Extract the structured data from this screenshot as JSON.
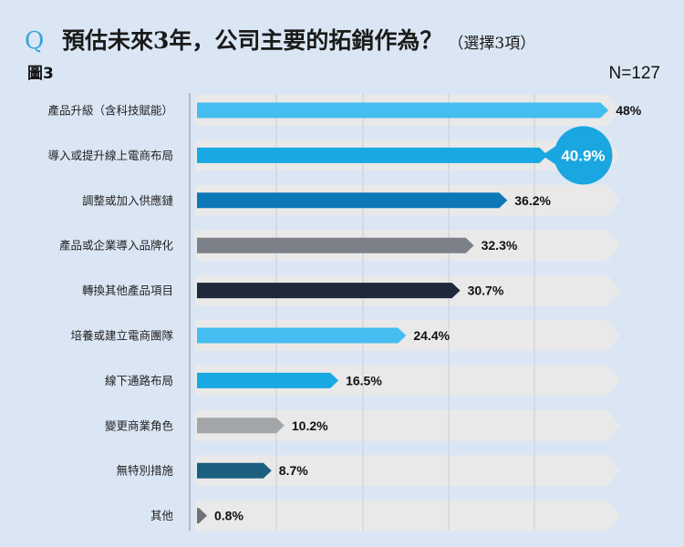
{
  "header": {
    "q_mark": "Q",
    "title": "預估未來3年，公司主要的拓銷作為？",
    "title_note": "（選擇3項）",
    "figure_label": "圖3",
    "sample_size": "N=127"
  },
  "colors": {
    "track": "#e9e9e9",
    "highlight_circle": "#1aa6e0"
  },
  "chart_data": {
    "type": "bar",
    "orientation": "horizontal",
    "title": "預估未來3年，公司主要的拓銷作為？",
    "xlim": [
      0,
      100
    ],
    "grid": true,
    "highlight_index": 1,
    "categories": [
      "產品升級（含科技賦能）",
      "導入或提升線上電商布局",
      "調整或加入供應鏈",
      "產品或企業導入品牌化",
      "轉換其他產品項目",
      "培養或建立電商團隊",
      "線下通路布局",
      "變更商業角色",
      "無特別措施",
      "其他"
    ],
    "values": [
      48,
      40.9,
      36.2,
      32.3,
      30.7,
      24.4,
      16.5,
      10.2,
      8.7,
      0.8
    ],
    "value_labels": [
      "48%",
      "40.9%",
      "36.2%",
      "32.3%",
      "30.7%",
      "24.4%",
      "16.5%",
      "10.2%",
      "8.7%",
      "0.8%"
    ],
    "bar_colors": [
      "#45bdf0",
      "#18a8e2",
      "#0d78b8",
      "#7c8189",
      "#1e2a3b",
      "#45bdf0",
      "#18a8e2",
      "#a3a6a9",
      "#1b5f80",
      "#6f7378"
    ]
  }
}
